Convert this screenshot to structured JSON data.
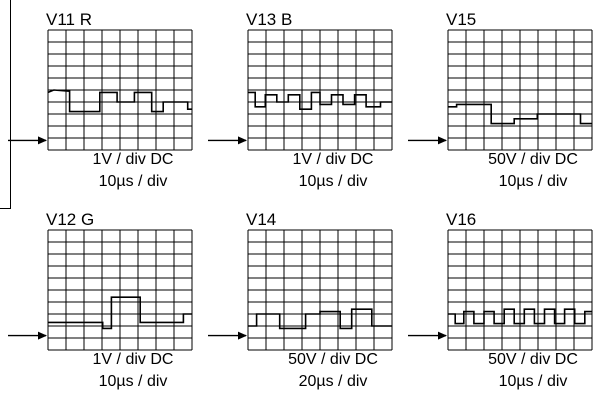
{
  "panels": [
    {
      "title": "V11 R",
      "line1": "1V / div DC",
      "line2": "10µs / div"
    },
    {
      "title": "V13 B",
      "line1": "1V / div DC",
      "line2": "10µs / div"
    },
    {
      "title": "V15",
      "line1": "50V / div DC",
      "line2": "10µs / div"
    },
    {
      "title": "V12 G",
      "line1": "1V / div DC",
      "line2": "10µs / div"
    },
    {
      "title": "V14",
      "line1": "50V / div DC",
      "line2": "20µs / div"
    },
    {
      "title": "V16",
      "line1": "50V / div DC",
      "line2": "10µs / div"
    }
  ]
}
